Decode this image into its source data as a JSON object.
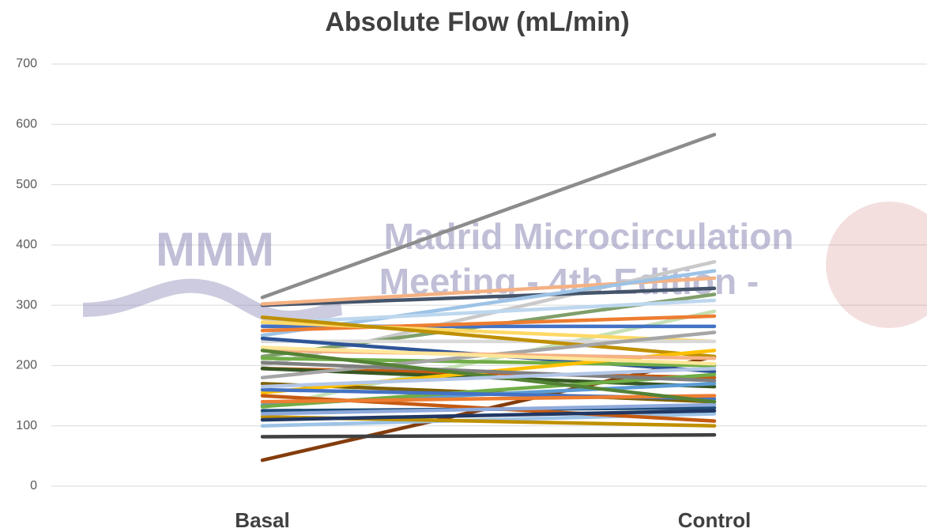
{
  "chart_data": {
    "type": "line",
    "title": "Absolute Flow (mL/min)",
    "watermark": [
      "MMM",
      "Madrid Microcirculation",
      "Meeting - 4th Edition -"
    ],
    "categories": [
      "Basal",
      "Control"
    ],
    "ylim": [
      0,
      700
    ],
    "yticks": [
      0,
      100,
      200,
      300,
      400,
      500,
      600,
      700
    ],
    "grid": true,
    "series": [
      {
        "color": "#8c8c8c",
        "values": [
          313,
          583
        ]
      },
      {
        "color": "#843c0c",
        "values": [
          43,
          215
        ]
      },
      {
        "color": "#404040",
        "values": [
          82,
          85
        ]
      },
      {
        "color": "#c9c9c9",
        "values": [
          200,
          372
        ]
      },
      {
        "color": "#44546a",
        "values": [
          300,
          328
        ]
      },
      {
        "color": "#f4b183",
        "values": [
          302,
          345
        ]
      },
      {
        "color": "#9dc3e6",
        "values": [
          250,
          357
        ]
      },
      {
        "color": "#7f9f6a",
        "values": [
          215,
          318
        ]
      },
      {
        "color": "#c5e0b4",
        "values": [
          130,
          290
        ]
      },
      {
        "color": "#bdd7ee",
        "values": [
          270,
          308
        ]
      },
      {
        "color": "#4472c4",
        "values": [
          265,
          265
        ]
      },
      {
        "color": "#ed7d31",
        "values": [
          258,
          282
        ]
      },
      {
        "color": "#ffd966",
        "values": [
          272,
          240
        ]
      },
      {
        "color": "#d9d9d9",
        "values": [
          240,
          240
        ]
      },
      {
        "color": "#2f5597",
        "values": [
          245,
          190
        ]
      },
      {
        "color": "#bf9000",
        "values": [
          280,
          215
        ]
      },
      {
        "color": "#70ad47",
        "values": [
          212,
          200
        ]
      },
      {
        "color": "#c55a11",
        "values": [
          195,
          180
        ]
      },
      {
        "color": "#385723",
        "values": [
          195,
          165
        ]
      },
      {
        "color": "#7f6000",
        "values": [
          170,
          140
        ]
      },
      {
        "color": "#ffc000",
        "values": [
          155,
          225
        ]
      },
      {
        "color": "#5b9bd5",
        "values": [
          135,
          170
        ]
      },
      {
        "color": "#1f4e79",
        "values": [
          125,
          130
        ]
      },
      {
        "color": "#9dc3e6",
        "values": [
          100,
          120
        ]
      },
      {
        "color": "#bf9000",
        "values": [
          115,
          100
        ]
      },
      {
        "color": "#c55a11",
        "values": [
          150,
          108
        ]
      },
      {
        "color": "#203864",
        "values": [
          110,
          125
        ]
      },
      {
        "color": "#70ad47",
        "values": [
          132,
          185
        ]
      },
      {
        "color": "#a5a5a5",
        "values": [
          180,
          255
        ]
      },
      {
        "color": "#f4b183",
        "values": [
          225,
          212
        ]
      },
      {
        "color": "#ffe699",
        "values": [
          230,
          203
        ]
      },
      {
        "color": "#4472c4",
        "values": [
          160,
          145
        ]
      },
      {
        "color": "#ed7d31",
        "values": [
          140,
          150
        ]
      },
      {
        "color": "#7f7f7f",
        "values": [
          205,
          175
        ]
      },
      {
        "color": "#8faadc",
        "values": [
          120,
          135
        ]
      },
      {
        "color": "#548235",
        "values": [
          225,
          140
        ]
      },
      {
        "color": "#b4c7e7",
        "values": [
          165,
          195
        ]
      }
    ]
  }
}
